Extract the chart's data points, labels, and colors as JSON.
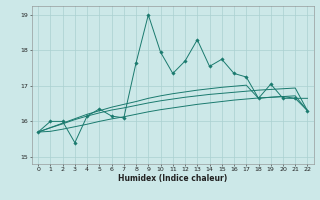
{
  "xlabel": "Humidex (Indice chaleur)",
  "background_color": "#cce8e8",
  "grid_color": "#aad0d0",
  "line_color": "#1a7a6e",
  "xlim": [
    -0.5,
    22.5
  ],
  "ylim": [
    14.8,
    19.25
  ],
  "yticks": [
    15,
    16,
    17,
    18,
    19
  ],
  "xticks": [
    0,
    1,
    2,
    3,
    4,
    5,
    6,
    7,
    8,
    9,
    10,
    11,
    12,
    13,
    14,
    15,
    16,
    17,
    18,
    19,
    20,
    21,
    22
  ],
  "line1_x": [
    0,
    1,
    2,
    3,
    4,
    5,
    6,
    7,
    8,
    9,
    10,
    11,
    12,
    13,
    14,
    15,
    16,
    17,
    18,
    19,
    20,
    21,
    22
  ],
  "line1_y": [
    15.7,
    16.0,
    16.0,
    15.4,
    16.15,
    16.35,
    16.15,
    16.1,
    17.65,
    19.0,
    17.95,
    17.35,
    17.7,
    18.3,
    17.55,
    17.75,
    17.35,
    17.25,
    16.65,
    17.05,
    16.65,
    16.65,
    16.3
  ],
  "line2_x": [
    0,
    4,
    5,
    6,
    7,
    8,
    9,
    10,
    11,
    12,
    13,
    14,
    15,
    16,
    17,
    18,
    19,
    20,
    21,
    22
  ],
  "line2_y": [
    15.7,
    16.2,
    16.3,
    16.4,
    16.48,
    16.56,
    16.65,
    16.72,
    16.78,
    16.83,
    16.88,
    16.92,
    16.96,
    16.99,
    17.02,
    16.65,
    16.68,
    16.7,
    16.65,
    16.65
  ],
  "line3_x": [
    0,
    1,
    2,
    3,
    4,
    5,
    6,
    7,
    8,
    9,
    10,
    11,
    12,
    13,
    14,
    15,
    16,
    17,
    18,
    19,
    20,
    21,
    22
  ],
  "line3_y": [
    15.7,
    15.82,
    15.93,
    16.05,
    16.15,
    16.24,
    16.32,
    16.38,
    16.45,
    16.52,
    16.58,
    16.63,
    16.68,
    16.72,
    16.76,
    16.79,
    16.82,
    16.85,
    16.88,
    16.9,
    16.92,
    16.94,
    16.3
  ],
  "line4_x": [
    0,
    1,
    2,
    3,
    4,
    5,
    6,
    7,
    8,
    9,
    10,
    11,
    12,
    13,
    14,
    15,
    16,
    17,
    18,
    19,
    20,
    21,
    22
  ],
  "line4_y": [
    15.7,
    15.72,
    15.78,
    15.85,
    15.92,
    16.0,
    16.07,
    16.13,
    16.2,
    16.27,
    16.33,
    16.38,
    16.43,
    16.48,
    16.52,
    16.56,
    16.6,
    16.63,
    16.66,
    16.68,
    16.7,
    16.72,
    16.3
  ]
}
